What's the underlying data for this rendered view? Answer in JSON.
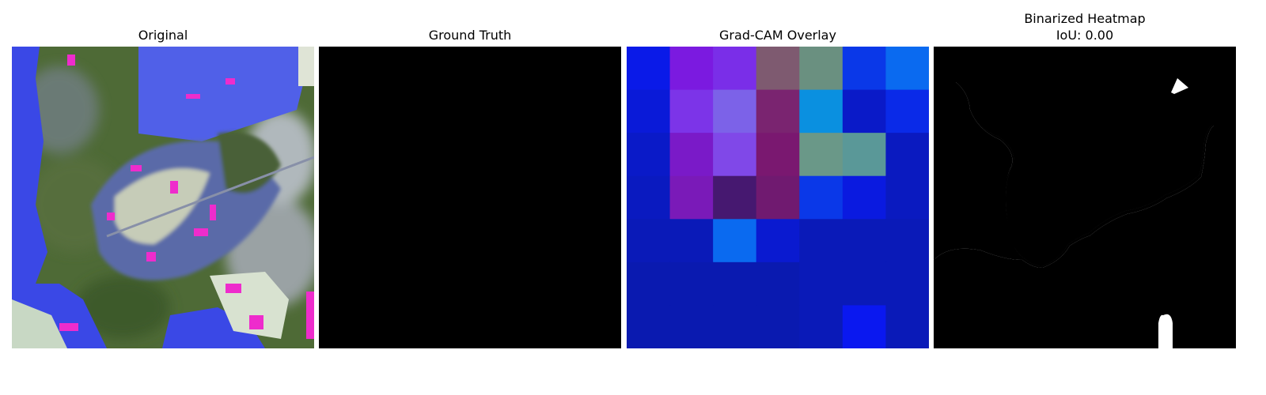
{
  "panels": [
    {
      "title": "Original"
    },
    {
      "title": "Ground Truth"
    },
    {
      "title": "Grad-CAM Overlay"
    },
    {
      "title": "Binarized Heatmap",
      "subtitle": "IoU: 0.00"
    }
  ],
  "gradcam_grid": [
    [
      "#0a1ae8",
      "#7b1ae0",
      "#7a2ee8",
      "#7e5a70",
      "#6a9080",
      "#0a38e8",
      "#0a6af0"
    ],
    [
      "#0a1ad8",
      "#7c34e8",
      "#7c62e8",
      "#7a2470",
      "#0a90e0",
      "#0a1ac8",
      "#0a2ae8"
    ],
    [
      "#0a1ac8",
      "#7a1ac8",
      "#8048e8",
      "#7a1870",
      "#6a9888",
      "#5a9898",
      "#0a1ac0"
    ],
    [
      "#0a1ac0",
      "#7a1ab8",
      "#461870",
      "#701a70",
      "#0a38e8",
      "#0a1ae0",
      "#0a1ac0"
    ],
    [
      "#0a1ab8",
      "#0a1ab8",
      "#0a6af0",
      "#0a1ad0",
      "#0a1ab8",
      "#0a1ab8",
      "#0a1ab8"
    ],
    [
      "#0a1ab0",
      "#0a1ab0",
      "#0a1ab0",
      "#0a1ab0",
      "#0a1ab8",
      "#0a1ab8",
      "#0a1ab8"
    ],
    [
      "#0a1ab0",
      "#0a1ab0",
      "#0a1ab0",
      "#0a1ab0",
      "#0a1ab8",
      "#0a18f0",
      "#0a1ab8"
    ]
  ]
}
